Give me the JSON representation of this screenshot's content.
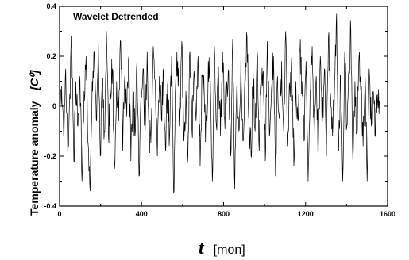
{
  "chart_data": {
    "type": "line",
    "annotation": "Wavelet Detrended",
    "ylabel": "Temperature anomaly",
    "ylabel_unit": "[C⁰]",
    "xlabel_symbol": "t",
    "xlabel_unit": "[mon]",
    "xlim": [
      0,
      1600
    ],
    "ylim": [
      -0.4,
      0.4
    ],
    "x_ticks": [
      0,
      400,
      800,
      1200,
      1600
    ],
    "y_ticks": [
      -0.4,
      -0.2,
      0,
      0.2,
      0.4
    ],
    "x_tick_labels": [
      "0",
      "400",
      "800",
      "1200",
      "1600"
    ],
    "y_tick_labels": [
      "-0.4",
      "-0.2",
      "0",
      "0.2",
      "0.4"
    ],
    "series": [
      {
        "x_start": 0,
        "x_end": 1560,
        "n_points": 1560,
        "values_sampled_every_10_months": [
          -0.05,
          0.08,
          -0.12,
          0.15,
          -0.18,
          0.05,
          0.28,
          -0.22,
          0.1,
          -0.08,
          0.12,
          -0.3,
          0.06,
          0.2,
          -0.15,
          -0.34,
          0.1,
          0.22,
          -0.05,
          0.25,
          -0.2,
          0.08,
          -0.1,
          0.3,
          -0.12,
          0.05,
          0.15,
          -0.25,
          0.1,
          -0.06,
          0.26,
          -0.18,
          0.12,
          -0.04,
          0.2,
          -0.22,
          0.08,
          -0.12,
          0.18,
          -0.28,
          0.05,
          0.15,
          -0.1,
          0.22,
          -0.16,
          -0.08,
          0.24,
          0.1,
          -0.2,
          0.12,
          -0.05,
          0.15,
          -0.18,
          0.08,
          -0.12,
          0.2,
          -0.35,
          0.1,
          0.18,
          -0.08,
          0.26,
          -0.14,
          0.06,
          -0.2,
          0.22,
          -0.1,
          0.14,
          -0.06,
          0.2,
          -0.24,
          0.12,
          0.05,
          -0.15,
          0.18,
          0.1,
          -0.3,
          0.24,
          -0.08,
          0.16,
          -0.12,
          0.22,
          -0.05,
          0.1,
          0.14,
          -0.2,
          0.27,
          -0.33,
          0.08,
          -0.1,
          0.18,
          -0.14,
          0.12,
          0.28,
          -0.06,
          -0.2,
          0.15,
          -0.1,
          0.22,
          -0.18,
          0.08,
          0.14,
          -0.22,
          0.26,
          -0.12,
          0.06,
          0.2,
          -0.28,
          0.12,
          -0.05,
          0.18,
          -0.1,
          0.3,
          -0.16,
          0.08,
          0.15,
          -0.24,
          0.1,
          -0.06,
          0.22,
          0.1,
          -0.14,
          0.18,
          -0.3,
          0.06,
          0.24,
          -0.12,
          0.12,
          -0.18,
          0.2,
          -0.06,
          0.15,
          -0.2,
          0.28,
          0.05,
          -0.12,
          0.1,
          0.37,
          -0.18,
          0.12,
          -0.3,
          0.22,
          -0.08,
          0.14,
          0.3,
          -0.22,
          0.1,
          -0.12,
          0.2,
          0.05,
          -0.16,
          0.12,
          -0.3,
          0.15,
          -0.08,
          0.06,
          -0.12,
          0.05,
          0.02
        ]
      }
    ]
  }
}
